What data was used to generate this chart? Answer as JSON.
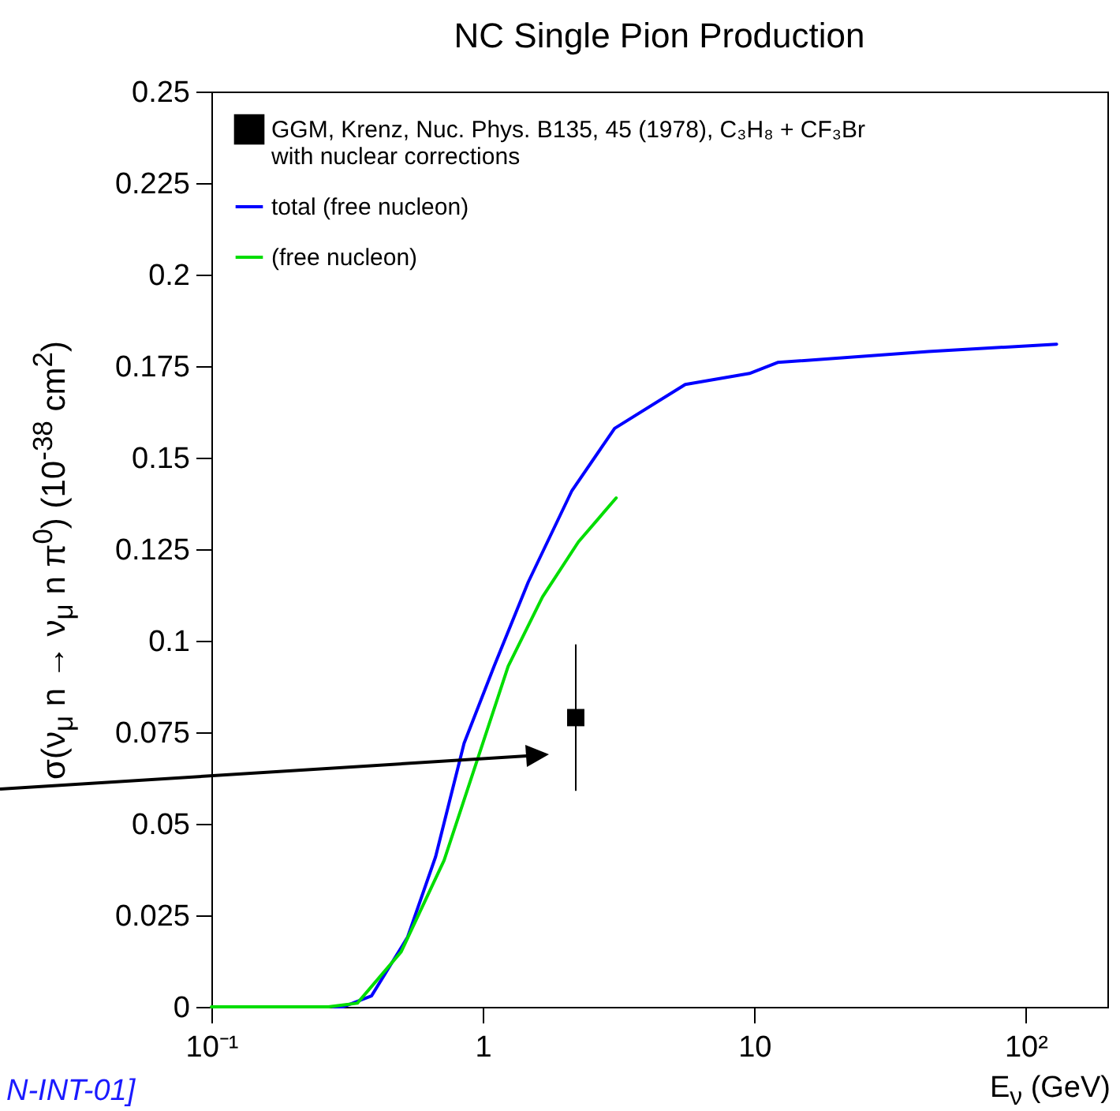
{
  "chart_data": {
    "type": "line",
    "title": "NC Single Pion Production",
    "xlabel": "E$_{ν}$ (GeV)",
    "ylabel": "σ(ν$_{μ}$ n → ν$_{μ}$ n π$^{0}$) (10$^{-38}$ cm$^{2}$)",
    "log": "x",
    "grid": false,
    "legend": "top left",
    "xlim": [
      0.1,
      200
    ],
    "xticks": [
      {
        "value": 0.1,
        "label": "10⁻¹"
      },
      1,
      10,
      {
        "value": 100,
        "label": "10²"
      }
    ],
    "ylim": [
      0,
      0.25
    ],
    "yticks": [
      0,
      0.025,
      0.05,
      0.075,
      0.1,
      0.125,
      0.15,
      0.175,
      0.2,
      0.225,
      0.25
    ],
    "series": [
      {
        "name": "GGM, Krenz, Nuc. Phys. B135, 45 (1978), C₃H₈ + CF₃Br\nwith nuclear corrections",
        "type": "scatter",
        "marker": "square",
        "color": "#000000",
        "x": [
          2.2
        ],
        "values": [
          0.079
        ],
        "errors": [
          0.02
        ]
      },
      {
        "name": "total (free nucleon)",
        "type": "line",
        "color": "#0000ff",
        "x": [
          0.28,
          0.306,
          0.389,
          0.528,
          0.67,
          0.853,
          1.1,
          1.47,
          2.13,
          3.06,
          5.57,
          9.6,
          12.2,
          43.8,
          130
        ],
        "values": [
          0,
          0,
          0.003,
          0.019,
          0.041,
          0.072,
          0.093,
          0.116,
          0.141,
          0.158,
          0.17,
          0.173,
          0.176,
          0.179,
          0.181
        ]
      },
      {
        "name": "(free nucleon)",
        "type": "line",
        "color": "#00dd00",
        "x": [
          0.1,
          0.27,
          0.345,
          0.5,
          0.72,
          1.0,
          1.24,
          1.66,
          2.25,
          3.1
        ],
        "values": [
          0,
          0,
          0.001,
          0.015,
          0.04,
          0.072,
          0.093,
          0.112,
          0.127,
          0.139
        ]
      }
    ],
    "annotations": [
      "N-INT-01]"
    ]
  }
}
